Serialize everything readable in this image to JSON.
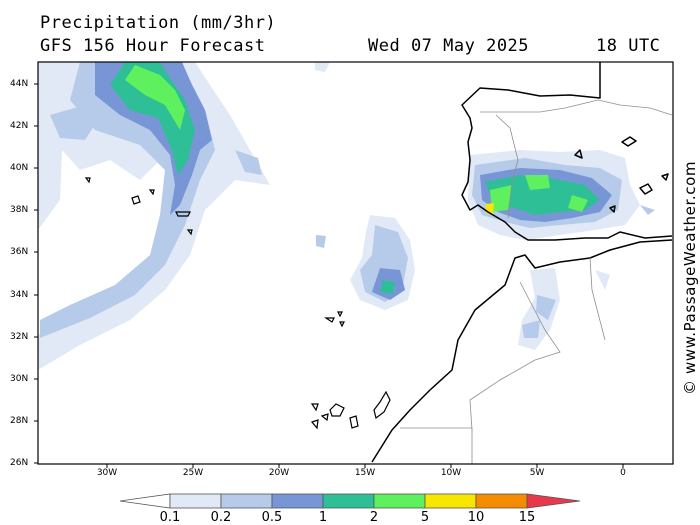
{
  "header": {
    "title": "Precipitation (mm/3hr)",
    "model": "GFS 156 Hour Forecast",
    "date": "Wed 07 May 2025",
    "time": "18 UTC"
  },
  "map": {
    "lat_labels": [
      "44N",
      "42N",
      "40N",
      "38N",
      "36N",
      "34N",
      "32N",
      "30N",
      "28N",
      "26N"
    ],
    "lon_labels": [
      "30W",
      "25W",
      "20W",
      "15W",
      "10W",
      "5W",
      "0"
    ],
    "lon_range": [
      -34,
      3
    ],
    "lat_range": [
      26,
      45
    ]
  },
  "legend": {
    "thresholds": [
      "0.1",
      "0.2",
      "0.5",
      "1",
      "2",
      "5",
      "10",
      "15"
    ],
    "colors": [
      "#ffffff",
      "#e1e9f6",
      "#b6cbe9",
      "#7895d6",
      "#2fbf96",
      "#5ef05e",
      "#f7e600",
      "#f58b00",
      "#e8394c"
    ]
  },
  "credit": "© www.PassageWeather.com"
}
